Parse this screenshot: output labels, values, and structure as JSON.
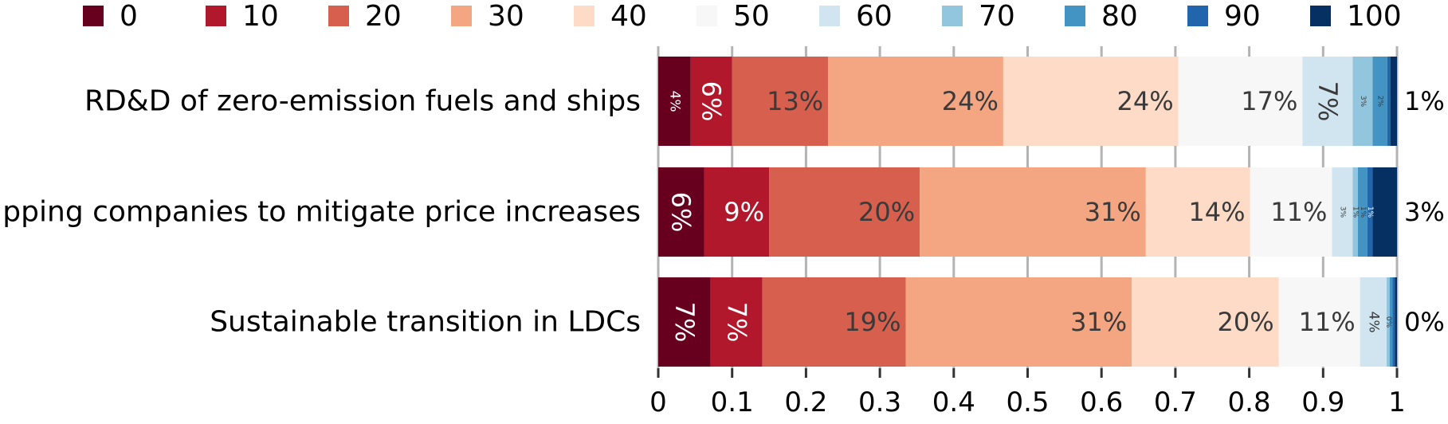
{
  "chart_data": {
    "type": "bar",
    "orientation": "horizontal",
    "stacked": true,
    "xlim": [
      0,
      1
    ],
    "x_ticks": [
      "0",
      "0.1",
      "0.2",
      "0.3",
      "0.4",
      "0.5",
      "0.6",
      "0.7",
      "0.8",
      "0.9",
      "1"
    ],
    "grid": "vertical",
    "legend_position": "top",
    "categories": [
      "RD&D of zero-emission fuels and ships",
      "Shipping companies to mitigate price increases",
      "Sustainable transition in LDCs"
    ],
    "series": [
      {
        "name": "0",
        "color": "#67001f",
        "label_color": "#ffffff",
        "values": [
          0.044,
          0.062,
          0.071
        ]
      },
      {
        "name": "10",
        "color": "#b2182b",
        "label_color": "#ffffff",
        "values": [
          0.056,
          0.088,
          0.07
        ]
      },
      {
        "name": "20",
        "color": "#d6604d",
        "label_color": "#3a3a3a",
        "values": [
          0.13,
          0.204,
          0.194
        ]
      },
      {
        "name": "30",
        "color": "#f4a582",
        "label_color": "#3a3a3a",
        "values": [
          0.237,
          0.306,
          0.306
        ]
      },
      {
        "name": "40",
        "color": "#fddbc7",
        "label_color": "#3a3a3a",
        "values": [
          0.237,
          0.141,
          0.199
        ]
      },
      {
        "name": "50",
        "color": "#f7f7f7",
        "label_color": "#3a3a3a",
        "values": [
          0.168,
          0.111,
          0.11
        ]
      },
      {
        "name": "60",
        "color": "#d1e5f0",
        "label_color": "#3a3a3a",
        "values": [
          0.068,
          0.028,
          0.036
        ]
      },
      {
        "name": "70",
        "color": "#92c5de",
        "label_color": "#3a3a3a",
        "values": [
          0.027,
          0.007,
          0.004
        ]
      },
      {
        "name": "80",
        "color": "#4393c3",
        "label_color": "#3a3a3a",
        "values": [
          0.02,
          0.013,
          0.004
        ]
      },
      {
        "name": "90",
        "color": "#2166ac",
        "label_color": "#ffffff",
        "values": [
          0.004,
          0.007,
          0.003
        ]
      },
      {
        "name": "100",
        "color": "#053061",
        "label_color": "#ffffff",
        "values": [
          0.009,
          0.033,
          0.003
        ]
      }
    ],
    "data_labels": [
      [
        {
          "text": "4%",
          "size": "small",
          "rotate": true
        },
        {
          "text": "6%",
          "size": "large",
          "rotate": true
        },
        {
          "text": "13%",
          "size": "large",
          "rotate": false
        },
        {
          "text": "24%",
          "size": "large",
          "rotate": false
        },
        {
          "text": "24%",
          "size": "large",
          "rotate": false
        },
        {
          "text": "17%",
          "size": "large",
          "rotate": false
        },
        {
          "text": "7%",
          "size": "large",
          "rotate": true
        },
        {
          "text": "3%",
          "size": "tiny",
          "rotate": true
        },
        {
          "text": "2%",
          "size": "tiny",
          "rotate": true
        },
        {
          "text": "",
          "size": "tiny",
          "rotate": true
        },
        {
          "text": "",
          "size": "tiny",
          "rotate": true
        }
      ],
      [
        {
          "text": "6%",
          "size": "large",
          "rotate": true
        },
        {
          "text": "9%",
          "size": "large",
          "rotate": false
        },
        {
          "text": "20%",
          "size": "large",
          "rotate": false
        },
        {
          "text": "31%",
          "size": "large",
          "rotate": false
        },
        {
          "text": "14%",
          "size": "large",
          "rotate": false
        },
        {
          "text": "11%",
          "size": "large",
          "rotate": false
        },
        {
          "text": "3%",
          "size": "tiny",
          "rotate": true
        },
        {
          "text": "1%",
          "size": "tiny",
          "rotate": true
        },
        {
          "text": "1%",
          "size": "tiny",
          "rotate": true
        },
        {
          "text": "1%",
          "size": "tiny",
          "rotate": true
        },
        {
          "text": "",
          "size": "tiny",
          "rotate": true
        }
      ],
      [
        {
          "text": "7%",
          "size": "large",
          "rotate": true
        },
        {
          "text": "7%",
          "size": "large",
          "rotate": true
        },
        {
          "text": "19%",
          "size": "large",
          "rotate": false
        },
        {
          "text": "31%",
          "size": "large",
          "rotate": false
        },
        {
          "text": "20%",
          "size": "large",
          "rotate": false
        },
        {
          "text": "11%",
          "size": "large",
          "rotate": false
        },
        {
          "text": "4%",
          "size": "small",
          "rotate": true
        },
        {
          "text": "0%",
          "size": "tiny",
          "rotate": true
        },
        {
          "text": "",
          "size": "tiny",
          "rotate": true
        },
        {
          "text": "",
          "size": "tiny",
          "rotate": true
        },
        {
          "text": "",
          "size": "tiny",
          "rotate": true
        }
      ]
    ],
    "end_labels": [
      "1%",
      "3%",
      "0%"
    ]
  }
}
